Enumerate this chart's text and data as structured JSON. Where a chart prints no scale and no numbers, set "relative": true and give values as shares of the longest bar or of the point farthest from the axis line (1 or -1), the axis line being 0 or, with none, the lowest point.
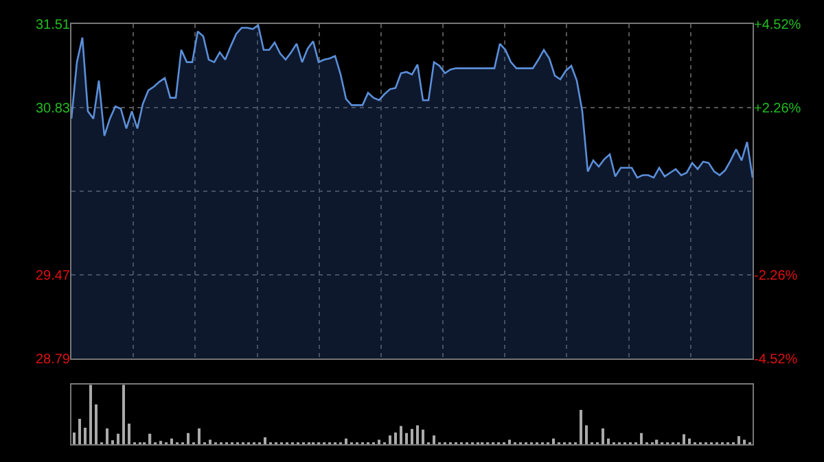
{
  "chart_data": [
    {
      "type": "area",
      "categories": [
        null,
        null,
        null,
        null,
        null,
        null,
        null,
        null,
        null,
        null,
        null,
        null,
        null,
        null,
        null,
        null,
        null,
        null,
        null,
        null,
        null,
        null,
        null,
        null,
        null,
        null,
        null,
        null,
        null,
        null,
        null,
        null,
        null,
        null,
        null,
        null,
        null,
        null,
        null,
        null,
        null,
        null,
        null,
        null,
        null,
        null,
        null,
        null,
        null,
        null,
        null,
        null,
        null,
        null,
        null,
        null,
        null,
        null,
        null,
        null,
        null,
        null,
        null,
        null,
        null,
        null,
        null,
        null,
        null,
        null,
        null,
        null,
        null,
        null,
        null,
        null,
        null,
        null,
        null,
        null,
        null,
        null,
        null,
        null,
        null,
        null,
        null,
        null,
        null,
        null,
        null,
        null,
        null,
        null,
        null,
        null,
        null,
        null,
        null,
        null,
        null,
        null,
        null,
        null,
        null,
        null,
        null,
        null,
        null,
        null,
        null,
        null,
        null,
        null,
        null,
        null,
        null,
        null,
        null,
        null,
        null,
        null,
        null,
        null,
        null
      ],
      "series": [
        {
          "color": "#5b8fd9",
          "values": [
            30.74,
            31.2,
            31.4,
            30.8,
            30.74,
            31.05,
            30.6,
            30.74,
            30.84,
            30.82,
            30.66,
            30.8,
            30.66,
            30.86,
            30.97,
            31.0,
            31.04,
            31.07,
            30.91,
            30.91,
            31.3,
            31.2,
            31.2,
            31.45,
            31.41,
            31.22,
            31.2,
            31.28,
            31.22,
            31.33,
            31.43,
            31.48,
            31.48,
            31.47,
            31.5,
            31.3,
            31.3,
            31.36,
            31.27,
            31.22,
            31.28,
            31.35,
            31.2,
            31.31,
            31.37,
            31.2,
            31.22,
            31.23,
            31.25,
            31.1,
            30.9,
            30.85,
            30.85,
            30.85,
            30.95,
            30.91,
            30.89,
            30.94,
            30.98,
            30.99,
            31.11,
            31.12,
            31.1,
            31.18,
            30.89,
            30.89,
            31.2,
            31.17,
            31.11,
            31.14,
            31.15,
            31.15,
            31.15,
            31.15,
            31.15,
            31.15,
            31.15,
            31.15,
            31.35,
            31.3,
            31.2,
            31.15,
            31.15,
            31.15,
            31.15,
            31.22,
            31.3,
            31.23,
            31.09,
            31.06,
            31.13,
            31.17,
            31.05,
            30.8,
            30.31,
            30.4,
            30.35,
            30.41,
            30.45,
            30.27,
            30.34,
            30.34,
            30.34,
            30.26,
            30.28,
            30.28,
            30.26,
            30.34,
            30.27,
            30.3,
            30.33,
            30.28,
            30.3,
            30.38,
            30.33,
            30.39,
            30.38,
            30.31,
            30.28,
            30.32,
            30.4,
            30.49,
            30.4,
            30.55,
            30.26
          ]
        }
      ],
      "ylim": [
        28.79,
        31.51
      ],
      "yticks": [
        31.51,
        30.83,
        {
          "value": 30.15,
          "label": null
        },
        29.47,
        28.79
      ],
      "y2lim": [
        -4.52,
        4.52
      ],
      "y2ticks": [
        {
          "value": 4.52,
          "label": "+4.52%"
        },
        {
          "value": 2.26,
          "label": "+2.26%"
        },
        {
          "value": 0,
          "label": null
        },
        {
          "value": -2.26,
          "label": "-2.26%"
        },
        {
          "value": -4.52,
          "label": "-4.52%"
        }
      ],
      "grid": true,
      "tick_labels": "y",
      "line_style": "solid",
      "marker": "none"
    },
    {
      "type": "bar",
      "relative": true,
      "color": "#aaaaaa",
      "tick_labels": false,
      "categories": [
        null,
        null,
        null,
        null,
        null,
        null,
        null,
        null,
        null,
        null,
        null,
        null,
        null,
        null,
        null,
        null,
        null,
        null,
        null,
        null,
        null,
        null,
        null,
        null,
        null,
        null,
        null,
        null,
        null,
        null,
        null,
        null,
        null,
        null,
        null,
        null,
        null,
        null,
        null,
        null,
        null,
        null,
        null,
        null,
        null,
        null,
        null,
        null,
        null,
        null,
        null,
        null,
        null,
        null,
        null,
        null,
        null,
        null,
        null,
        null,
        null,
        null,
        null,
        null,
        null,
        null,
        null,
        null,
        null,
        null,
        null,
        null,
        null,
        null,
        null,
        null,
        null,
        null,
        null,
        null,
        null,
        null,
        null,
        null,
        null,
        null,
        null,
        null,
        null,
        null,
        null,
        null,
        null,
        null,
        null,
        null,
        null,
        null,
        null,
        null,
        null,
        null,
        null,
        null,
        null,
        null,
        null,
        null,
        null,
        null,
        null,
        null,
        null,
        null,
        null,
        null,
        null,
        null,
        null,
        null,
        null,
        null,
        null,
        null,
        null
      ],
      "values": [
        0.2,
        0.43,
        0.28,
        1,
        0.67,
        0.03,
        0.27,
        0.07,
        0.18,
        1,
        0.35,
        0.03,
        0.03,
        0.03,
        0.18,
        0.03,
        0.06,
        0.03,
        0.1,
        0.03,
        0.03,
        0.19,
        0.03,
        0.27,
        0.03,
        0.08,
        0.03,
        0.03,
        0.03,
        0.03,
        0.03,
        0.03,
        0.03,
        0.03,
        0.03,
        0.12,
        0.03,
        0.03,
        0.03,
        0.03,
        0.03,
        0.03,
        0.03,
        0.03,
        0.03,
        0.03,
        0.03,
        0.03,
        0.03,
        0.03,
        0.1,
        0.03,
        0.03,
        0.03,
        0.03,
        0.03,
        0.08,
        0.03,
        0.15,
        0.2,
        0.31,
        0.19,
        0.26,
        0.32,
        0.25,
        0.03,
        0.15,
        0.03,
        0.03,
        0.03,
        0.03,
        0.03,
        0.03,
        0.03,
        0.03,
        0.03,
        0.03,
        0.03,
        0.03,
        0.03,
        0.08,
        0.03,
        0.03,
        0.03,
        0.03,
        0.03,
        0.03,
        0.03,
        0.1,
        0.03,
        0.03,
        0.03,
        0.03,
        0.58,
        0.32,
        0.03,
        0.03,
        0.27,
        0.1,
        0.03,
        0.03,
        0.03,
        0.03,
        0.03,
        0.19,
        0.03,
        0.03,
        0.08,
        0.03,
        0.03,
        0.03,
        0.03,
        0.17,
        0.1,
        0.03,
        0.03,
        0.03,
        0.03,
        0.03,
        0.03,
        0.03,
        0.03,
        0.14,
        0.08,
        0.03
      ]
    }
  ]
}
